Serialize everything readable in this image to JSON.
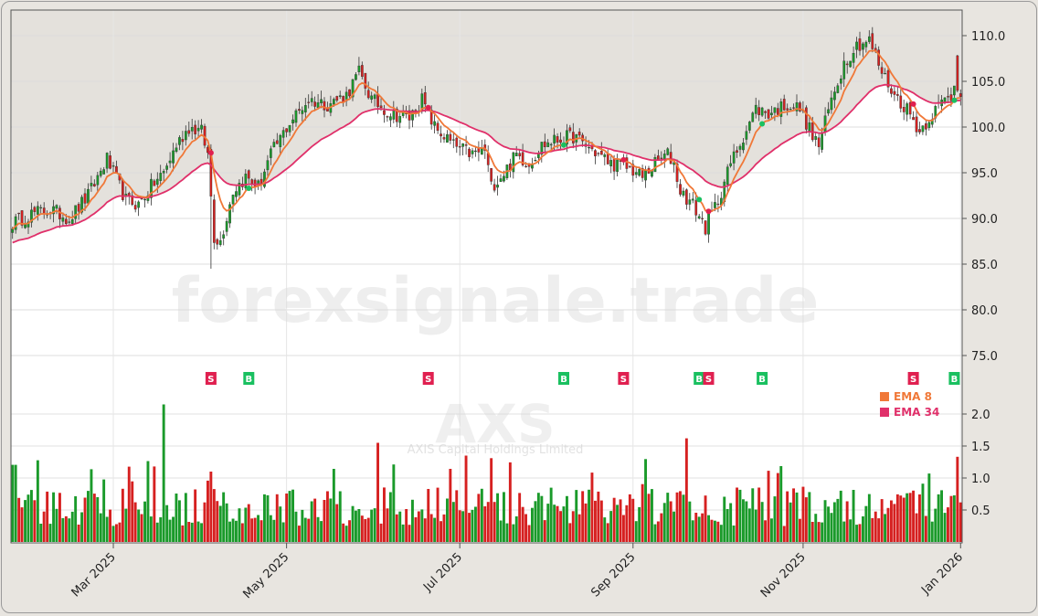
{
  "chart_data": {
    "type": "candlestick",
    "ticker": "AXS",
    "company": "AXIS Capital Holdings Limited",
    "watermark": "forexsignale.trade",
    "legend_position": "right",
    "grid": true,
    "price_axis": {
      "ylim": [
        70,
        112
      ],
      "ticks": [
        "110.0",
        "105.0",
        "100.0",
        "95.0",
        "90.0",
        "85.0",
        "80.0",
        "75.0"
      ],
      "tick_values": [
        110,
        105,
        100,
        95,
        90,
        85,
        80,
        75
      ]
    },
    "volume_axis": {
      "ylim": [
        0,
        2.2
      ],
      "ticks": [
        "2.0",
        "1.5",
        "1.0",
        "0.5"
      ],
      "tick_values": [
        2.0,
        1.5,
        1.0,
        0.5
      ]
    },
    "x_axis": {
      "ticks": [
        "Mar 2025",
        "May 2025",
        "Jul 2025",
        "Sep 2025",
        "Nov 2025",
        "Jan 2026"
      ]
    },
    "legend": [
      {
        "label": "EMA 8",
        "color": "#f07838"
      },
      {
        "label": "EMA 34",
        "color": "#e0306a"
      }
    ],
    "colors": {
      "up": "#1a9a2a",
      "down": "#d62020",
      "buy": "#1ac060",
      "sell": "#e02050",
      "ema_fast": "#f07838",
      "ema_slow": "#e0306a"
    },
    "price_keypoints": [
      [
        0,
        89.5
      ],
      [
        6,
        90.5
      ],
      [
        12,
        91.0
      ],
      [
        18,
        90.0
      ],
      [
        24,
        92.5
      ],
      [
        30,
        96.5
      ],
      [
        36,
        92.0
      ],
      [
        40,
        91.5
      ],
      [
        44,
        93.5
      ],
      [
        48,
        95.0
      ],
      [
        52,
        98.0
      ],
      [
        56,
        100.0
      ],
      [
        60,
        99.5
      ],
      [
        62,
        97.0
      ],
      [
        64,
        88.0
      ],
      [
        66,
        87.5
      ],
      [
        70,
        93.0
      ],
      [
        74,
        94.5
      ],
      [
        78,
        93.5
      ],
      [
        82,
        97.0
      ],
      [
        88,
        100.5
      ],
      [
        94,
        103.0
      ],
      [
        100,
        102.5
      ],
      [
        106,
        103.5
      ],
      [
        110,
        106.0
      ],
      [
        114,
        103.0
      ],
      [
        120,
        101.5
      ],
      [
        126,
        101.0
      ],
      [
        130,
        103.0
      ],
      [
        134,
        100.0
      ],
      [
        140,
        98.0
      ],
      [
        146,
        97.0
      ],
      [
        150,
        97.5
      ],
      [
        152,
        93.5
      ],
      [
        156,
        95.0
      ],
      [
        160,
        97.0
      ],
      [
        164,
        96.0
      ],
      [
        168,
        98.0
      ],
      [
        172,
        98.5
      ],
      [
        178,
        99.0
      ],
      [
        182,
        98.0
      ],
      [
        186,
        97.0
      ],
      [
        190,
        96.0
      ],
      [
        196,
        95.5
      ],
      [
        200,
        94.5
      ],
      [
        204,
        96.0
      ],
      [
        208,
        97.0
      ],
      [
        210,
        96.0
      ],
      [
        212,
        93.0
      ],
      [
        216,
        91.5
      ],
      [
        220,
        89.0
      ],
      [
        224,
        92.0
      ],
      [
        228,
        96.0
      ],
      [
        232,
        99.0
      ],
      [
        236,
        102.0
      ],
      [
        240,
        101.5
      ],
      [
        246,
        102.5
      ],
      [
        250,
        102.0
      ],
      [
        254,
        99.0
      ],
      [
        256,
        98.0
      ],
      [
        260,
        103.0
      ],
      [
        264,
        107.0
      ],
      [
        268,
        109.0
      ],
      [
        272,
        109.5
      ],
      [
        276,
        106.0
      ],
      [
        280,
        103.5
      ],
      [
        284,
        102.0
      ],
      [
        288,
        99.5
      ],
      [
        292,
        101.5
      ],
      [
        296,
        103.0
      ],
      [
        299,
        103.5
      ],
      [
        300,
        104.0
      ]
    ],
    "signals": [
      {
        "type": "S",
        "index": 63
      },
      {
        "type": "B",
        "index": 75
      },
      {
        "type": "S",
        "index": 132
      },
      {
        "type": "B",
        "index": 175
      },
      {
        "type": "S",
        "index": 194
      },
      {
        "type": "B",
        "index": 218
      },
      {
        "type": "S",
        "index": 221
      },
      {
        "type": "B",
        "index": 238
      },
      {
        "type": "S",
        "index": 286
      },
      {
        "type": "B",
        "index": 299
      }
    ],
    "candles": 302
  }
}
